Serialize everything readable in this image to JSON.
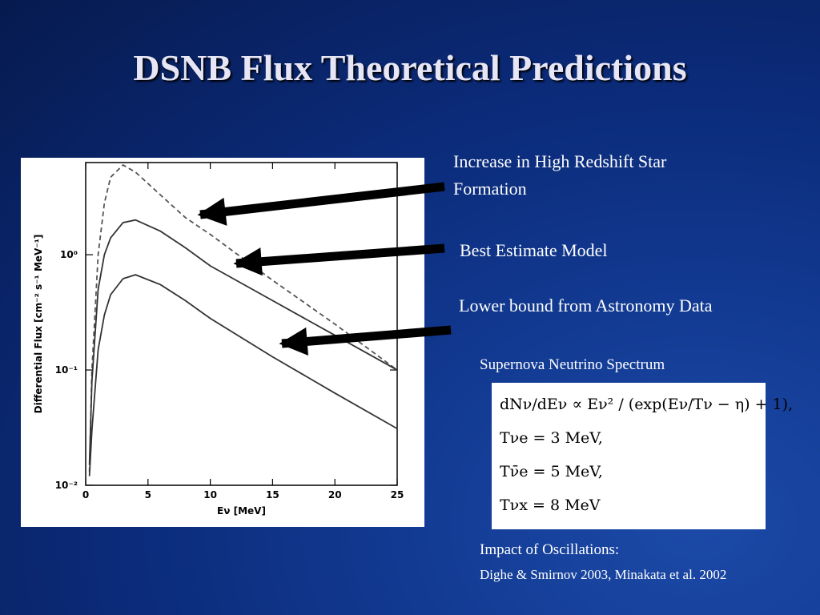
{
  "title": "DSNB Flux Theoretical Predictions",
  "chart_data": {
    "type": "line",
    "x_label": "Eν [MeV]",
    "y_label": "Differential Flux [cm⁻² s⁻¹ MeV⁻¹]",
    "log_y": true,
    "xlim": [
      0,
      25
    ],
    "xticks": [
      0,
      5,
      10,
      15,
      20,
      25
    ],
    "ylim": [
      0.01,
      6.3
    ],
    "yticks": [
      {
        "value": 0.01,
        "label": "10⁻²"
      },
      {
        "value": 0.1,
        "label": "10⁻¹"
      },
      {
        "value": 1,
        "label": "10⁰"
      }
    ],
    "x": [
      0.3,
      0.5,
      1,
      1.5,
      2,
      3,
      4,
      6,
      8,
      10,
      15,
      20,
      25
    ],
    "series": [
      {
        "color": "#555555",
        "dashed": true,
        "values": [
          0.013,
          0.1,
          1.0,
          2.8,
          4.7,
          6.0,
          5.2,
          3.3,
          2.1,
          1.5,
          0.6,
          0.25,
          0.1
        ]
      },
      {
        "color": "#333333",
        "dashed": false,
        "values": [
          0.015,
          0.08,
          0.5,
          1.0,
          1.4,
          1.9,
          2.0,
          1.6,
          1.15,
          0.8,
          0.4,
          0.2,
          0.1
        ]
      },
      {
        "color": "#333333",
        "dashed": false,
        "values": [
          0.012,
          0.03,
          0.15,
          0.3,
          0.45,
          0.62,
          0.67,
          0.55,
          0.4,
          0.28,
          0.13,
          0.063,
          0.031
        ]
      }
    ]
  },
  "annotations": [
    "Increase in High Redshift Star Formation",
    "Best Estimate Model",
    "Lower bound from Astronomy Data"
  ],
  "spectrum": {
    "heading": "Supernova Neutrino Spectrum",
    "formula": [
      "dNν/dEν  ∝  Eν² / (exp(Eν/Tν − η) + 1),",
      "Tνe  =  3 MeV,",
      "Tν̄e  =  5 MeV,",
      "Tνx  =  8 MeV"
    ]
  },
  "oscillations": {
    "heading": "Impact of Oscillations:",
    "references": "Dighe & Smirnov 2003, Minakata et al. 2002"
  }
}
